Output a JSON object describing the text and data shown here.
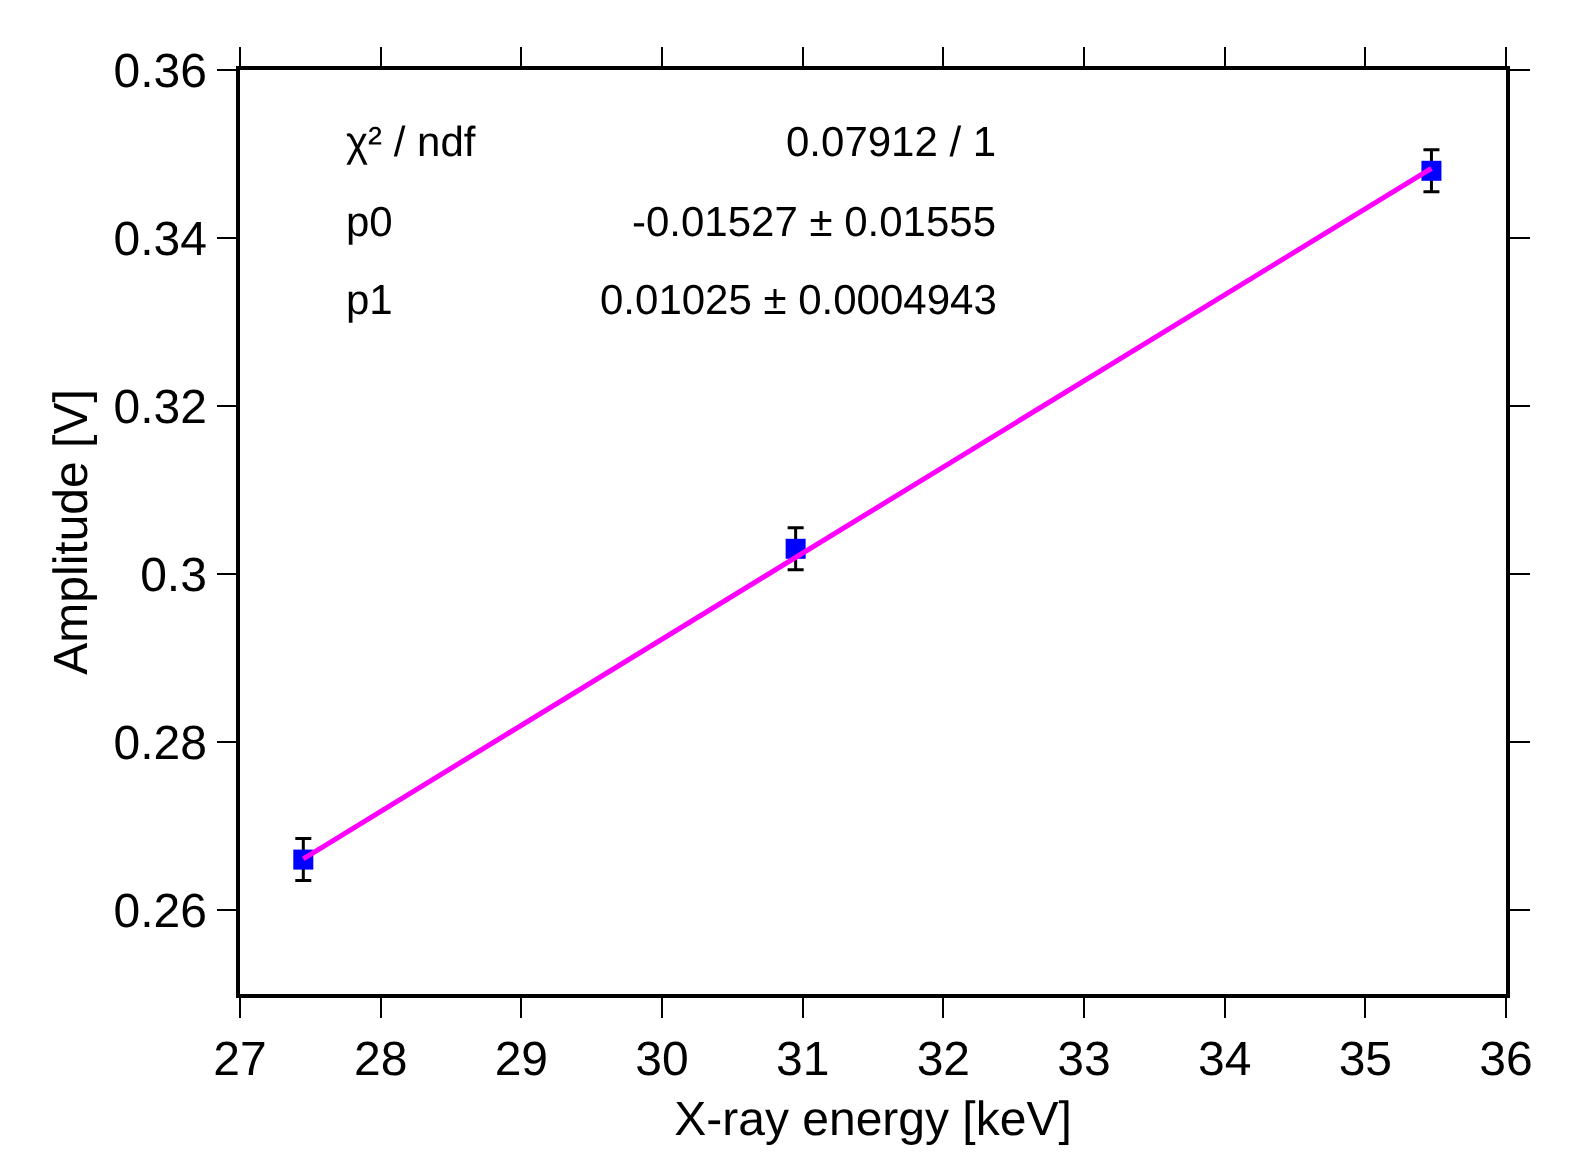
{
  "chart_data": {
    "type": "scatter",
    "xlabel": "X-ray energy [keV]",
    "ylabel": "Amplitude [V]",
    "xlim": [
      27,
      36
    ],
    "xticks": [
      27,
      28,
      29,
      30,
      31,
      32,
      33,
      34,
      35,
      36
    ],
    "ylim": [
      0.25,
      0.36
    ],
    "yticks": [
      0.26,
      0.28,
      0.3,
      0.32,
      0.34,
      0.36
    ],
    "series": [
      {
        "marker": "square",
        "color": "#0000ff",
        "x": [
          27.45,
          30.95,
          35.47
        ],
        "values": [
          0.266,
          0.303,
          0.348
        ],
        "errors": [
          0.0025,
          0.0025,
          0.0025
        ]
      },
      {
        "type": "line",
        "color": "#ff00ff",
        "x": [
          27.45,
          35.47
        ],
        "values": [
          0.2661,
          0.3483
        ],
        "line_style": "solid"
      }
    ],
    "annotations": [
      "χ² / ndf",
      "0.07912 / 1",
      "p0",
      "-0.01527 ± 0.01555",
      "p1",
      "0.01025 ± 0.0004943"
    ]
  }
}
